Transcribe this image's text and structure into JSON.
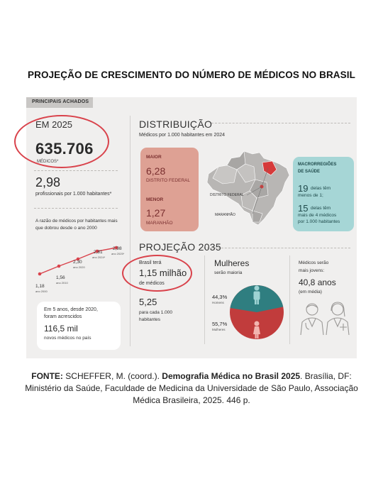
{
  "title": "PROJEÇÃO DE CRESCIMENTO DO NÚMERO DE MÉDICOS NO BRASIL",
  "tag": "PRINCIPAIS ACHADOS",
  "em2025": {
    "heading": "EM 2025",
    "value": "635.706",
    "label": "MÉDICOS*"
  },
  "ratio": {
    "value": "2,98",
    "label": "profissionais por 1.000 habitantes*"
  },
  "growth": {
    "text": "A razão de médicos por habitantes mais que dobrou desde o ano 2000",
    "points": [
      {
        "value": "1,18",
        "year": "ano 2000"
      },
      {
        "value": "1,56",
        "year": "ano 2010"
      },
      {
        "value": "2,30",
        "year": "ano 2020"
      },
      {
        "value": "2,81",
        "year": "ano 2024*"
      },
      {
        "value": "2,98",
        "year": "ano 2025*"
      }
    ]
  },
  "five_years": {
    "line1": "Em 5 anos, desde 2020,",
    "line2": "foram acrescidos",
    "value": "116,5 mil",
    "line3": "novos médicos no país"
  },
  "distribuicao": {
    "heading": "DISTRIBUIÇÃO",
    "subtitle": "Médicos por 1.000 habitantes em 2024",
    "maior_label": "MAIOR",
    "maior_value": "6,28",
    "maior_place": "DISTRITO FEDERAL",
    "menor_label": "MENOR",
    "menor_value": "1,27",
    "menor_place": "MARANHÃO",
    "map_df": "DISTRITO FEDERAL",
    "map_ma": "MARANHÃO"
  },
  "macro": {
    "heading1": "MACRORREGIÕES",
    "heading2": "DE SAÚDE",
    "a_value": "19",
    "a_text1": "delas têm",
    "a_text2": "menos de 1;",
    "b_value": "15",
    "b_text1": "delas têm",
    "b_text2": "mais de 4 médicos",
    "b_text3": "por 1.000  habitantes"
  },
  "projecao": {
    "heading": "PROJEÇÃO 2035",
    "line1": "Brasil terá",
    "value": "1,15 milhão",
    "line2": "de médicos",
    "ratio_value": "5,25",
    "ratio_line1": "para cada 1.000",
    "ratio_line2": "habitantes"
  },
  "mulheres": {
    "heading": "Mulheres",
    "sub": "serão maioria",
    "men_pct": "44,3%",
    "men_label": "Homens",
    "women_pct": "55,7%",
    "women_label": "Mulheres",
    "men_share": 44.3,
    "women_share": 55.7,
    "men_color": "#2f7e80",
    "women_color": "#c13c3c"
  },
  "jovens": {
    "line1": "Médicos serão",
    "line2": "mais jovens:",
    "value": "40,8 anos",
    "line3": "(em média)"
  },
  "source": {
    "prefix": "FONTE:",
    "authors": " SCHEFFER, M. (coord.). ",
    "work": "Demografia Médica no Brasil 2025",
    "rest": ". Brasília, DF: Ministério da Saúde, Faculdade de Medicina da Universidade de São Paulo, Associação Médica Brasileira, 2025. 446 p."
  }
}
